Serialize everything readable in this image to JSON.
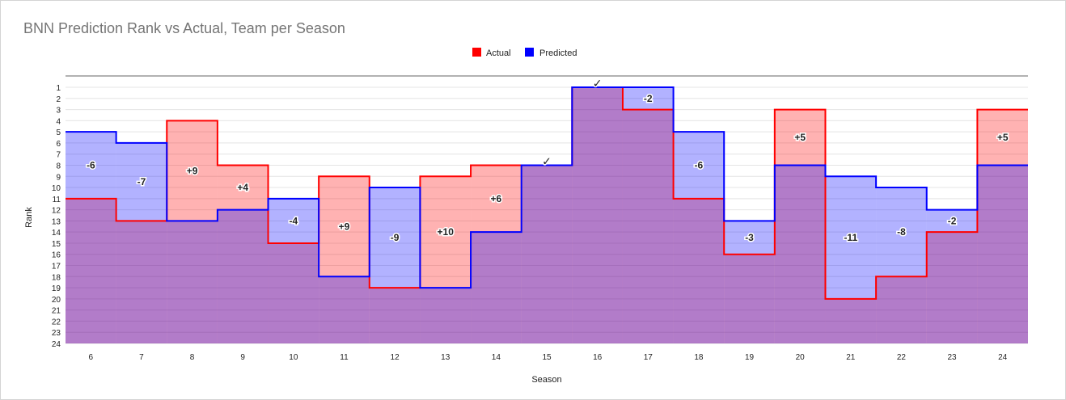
{
  "chart_data": {
    "type": "area",
    "title": "BNN Prediction Rank vs Actual, Team per Season",
    "xlabel": "Season",
    "ylabel": "Rank",
    "categories": [
      "6",
      "7",
      "8",
      "9",
      "10",
      "11",
      "12",
      "13",
      "14",
      "15",
      "16",
      "17",
      "18",
      "19",
      "20",
      "21",
      "22",
      "23",
      "24"
    ],
    "series": [
      {
        "name": "Actual",
        "color": "#ff0000",
        "values": [
          11,
          13,
          4,
          8,
          15,
          9,
          19,
          9,
          8,
          8,
          1,
          3,
          11,
          16,
          3,
          20,
          18,
          14,
          3
        ]
      },
      {
        "name": "Predicted",
        "color": "#0000ff",
        "values": [
          5,
          6,
          13,
          12,
          11,
          18,
          10,
          19,
          14,
          8,
          1,
          1,
          5,
          13,
          8,
          9,
          10,
          12,
          8
        ]
      }
    ],
    "y_ticks": [
      "1",
      "2",
      "3",
      "4",
      "5",
      "6",
      "7",
      "8",
      "9",
      "10",
      "11",
      "12",
      "13",
      "14",
      "15",
      "16",
      "17",
      "18",
      "19",
      "20",
      "21",
      "22",
      "23",
      "24"
    ],
    "ylim": [
      1,
      24
    ],
    "y_reversed": true,
    "legend_position": "top",
    "point_labels": [
      "-6",
      "-7",
      "+9",
      "+4",
      "-4",
      "+9",
      "-9",
      "+10",
      "+6",
      "✓",
      "✓",
      "-2",
      "-6",
      "-3",
      "+5",
      "-11",
      "-8",
      "-2",
      "+5"
    ]
  }
}
